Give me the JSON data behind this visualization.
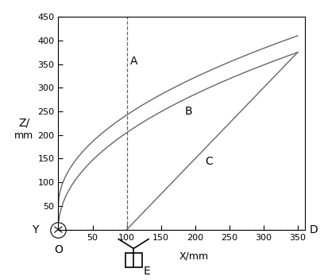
{
  "xlim": [
    0,
    360
  ],
  "ylim": [
    0,
    450
  ],
  "xticks": [
    50,
    100,
    150,
    200,
    250,
    300,
    350
  ],
  "yticks": [
    50,
    100,
    150,
    200,
    250,
    300,
    350,
    400,
    450
  ],
  "xlabel": "X/mm",
  "ylabel": "Z/\nmm",
  "curve_color": "#666666",
  "bg_color": "#ffffff",
  "label_A": "A",
  "label_B": "B",
  "label_C": "C",
  "label_D": "D",
  "label_E": "E",
  "label_Y": "Y",
  "label_O": "O",
  "dashed_x": 100,
  "figsize": [
    4.08,
    3.52
  ],
  "dpi": 100
}
